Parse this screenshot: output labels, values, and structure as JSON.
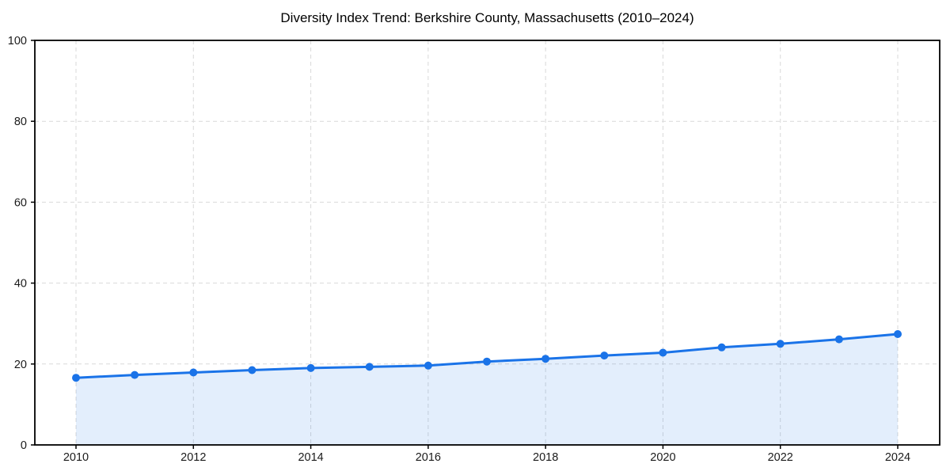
{
  "chart_data": {
    "type": "area",
    "title": "Diversity Index Trend: Berkshire County, Massachusetts (2010–2024)",
    "series": [
      {
        "name": "Diversity Index",
        "values": [
          16.6,
          17.3,
          17.9,
          18.5,
          19.0,
          19.3,
          19.6,
          20.6,
          21.3,
          22.1,
          22.8,
          24.1,
          25.0,
          26.1,
          27.4
        ]
      }
    ],
    "x": [
      2010,
      2011,
      2012,
      2013,
      2014,
      2015,
      2016,
      2017,
      2018,
      2019,
      2020,
      2021,
      2022,
      2023,
      2024
    ],
    "xticks": [
      2010,
      2012,
      2014,
      2016,
      2018,
      2020,
      2022,
      2024
    ],
    "yticks": [
      0,
      20,
      40,
      60,
      80,
      100
    ],
    "xlabel": "",
    "ylabel": "",
    "ylim": [
      0,
      100
    ],
    "xlim": [
      2009.3,
      2024.72
    ],
    "grid": true,
    "grid_style": "dashed",
    "legend": "none",
    "colors": {
      "line": "#1a73e8",
      "marker": "#1a73e8",
      "fill": "#1a73e8",
      "fill_opacity": 0.12,
      "grid": "#d9d9d9",
      "axis": "#000000",
      "tick_label": "#1a1a1a",
      "title": "#000000"
    }
  }
}
